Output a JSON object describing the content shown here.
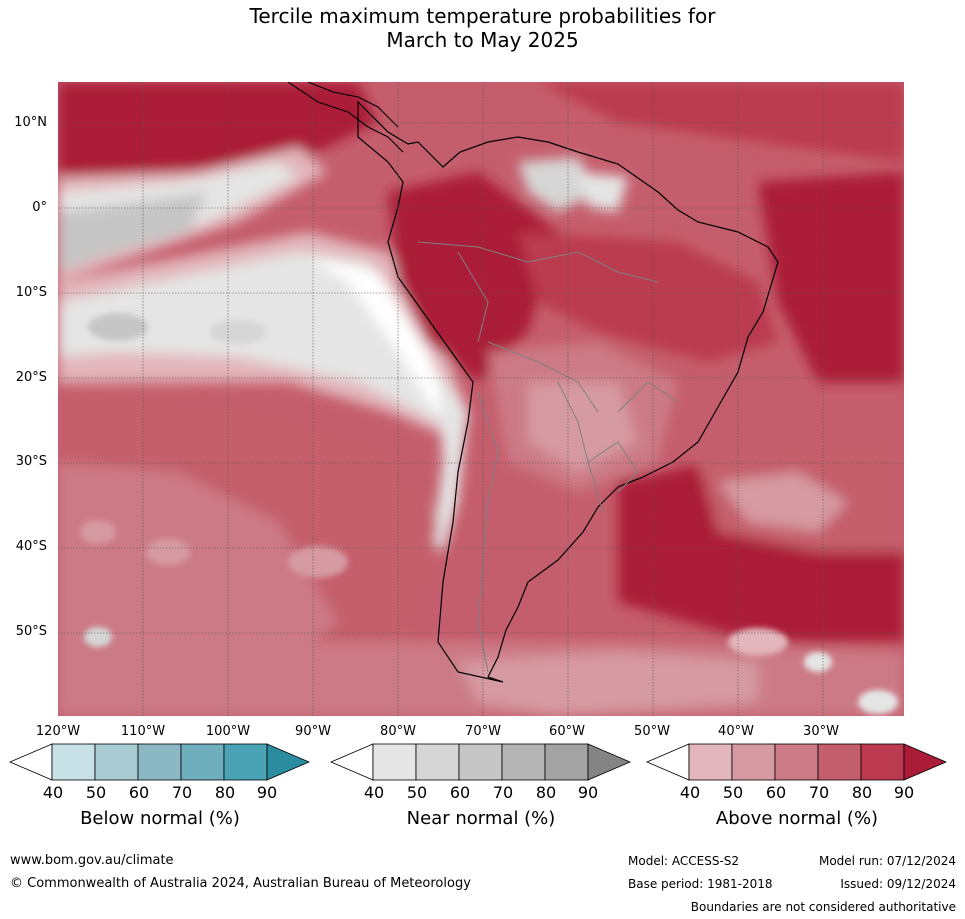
{
  "title": {
    "line1": "Tercile maximum temperature probabilities for",
    "line2": "March to May 2025"
  },
  "axes": {
    "latitudes": [
      "10°N",
      "0°",
      "10°S",
      "20°S",
      "30°S",
      "40°S",
      "50°S"
    ],
    "longitudes": [
      "120°W",
      "110°W",
      "100°W",
      "90°W",
      "80°W",
      "70°W",
      "60°W",
      "50°W",
      "40°W",
      "30°W"
    ]
  },
  "legends": [
    {
      "title": "Below normal (%)",
      "ticks": [
        "40",
        "50",
        "60",
        "70",
        "80",
        "90"
      ],
      "colors": [
        "#ffffff",
        "#c8e1e7",
        "#a9cbd2",
        "#8cb8c3",
        "#6eaebd",
        "#4aa3b5",
        "#2a8c9e"
      ]
    },
    {
      "title": "Near normal (%)",
      "ticks": [
        "40",
        "50",
        "60",
        "70",
        "80",
        "90"
      ],
      "colors": [
        "#ffffff",
        "#e5e5e5",
        "#d6d6d6",
        "#c6c6c6",
        "#b5b5b5",
        "#a3a3a3",
        "#848484"
      ]
    },
    {
      "title": "Above normal (%)",
      "ticks": [
        "40",
        "50",
        "60",
        "70",
        "80",
        "90"
      ],
      "colors": [
        "#ffffff",
        "#e2b6bc",
        "#d69aa2",
        "#cc7a86",
        "#c55e6c",
        "#bb3a4f",
        "#ab1c38"
      ]
    }
  ],
  "footer": {
    "url": "www.bom.gov.au/climate",
    "copyright": "© Commonwealth of Australia 2024, Australian Bureau of Meteorology",
    "model": "Model: ACCESS-S2",
    "base_period": "Base period: 1981-2018",
    "model_run": "Model run: 07/12/2024",
    "issued": "Issued: 09/12/2024",
    "disclaimer": "Boundaries are not considered authoritative"
  }
}
